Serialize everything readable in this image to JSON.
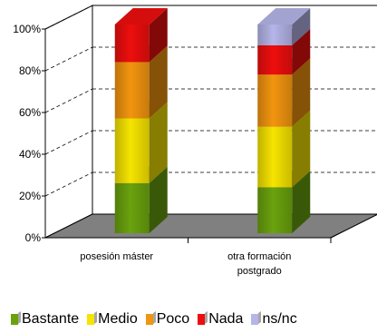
{
  "chart_data": {
    "type": "bar",
    "stacked": true,
    "percent": true,
    "categories": [
      "posesión máster",
      "otra formación postgrado"
    ],
    "series": [
      {
        "name": "Bastante",
        "color": "#6aa20e",
        "values": [
          24,
          22
        ]
      },
      {
        "name": "Medio",
        "color": "#f6e400",
        "values": [
          31,
          29
        ]
      },
      {
        "name": "Poco",
        "color": "#f2950f",
        "values": [
          27,
          25
        ]
      },
      {
        "name": "Nada",
        "color": "#ee0e0e",
        "values": [
          18,
          14
        ]
      },
      {
        "name": "ns/nc",
        "color": "#b5b5e8",
        "values": [
          0,
          10
        ]
      }
    ],
    "y_ticks": [
      "0%",
      "20%",
      "40%",
      "60%",
      "80%",
      "100%"
    ],
    "ylim": [
      0,
      100
    ],
    "grid": true,
    "legend_position": "bottom",
    "style": "3d"
  }
}
